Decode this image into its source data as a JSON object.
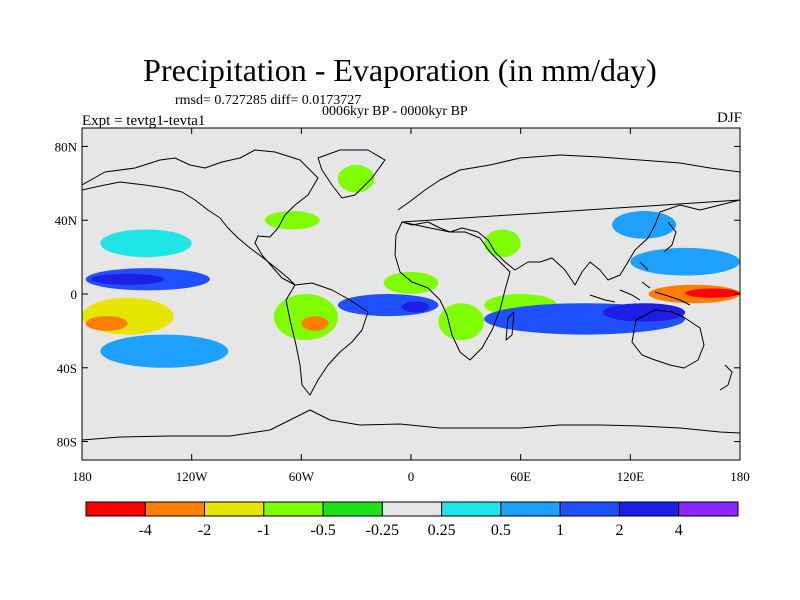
{
  "figure": {
    "title": "Precipitation - Evaporation (in mm/day)",
    "stats": "rmsd= 0.727285  diff= 0.0173727",
    "period": "0006kyr BP - 0000kyr BP",
    "experiment": "Expt = tevtg1-tevta1",
    "season": "DJF"
  },
  "axes": {
    "lat_ticks": [
      "80N",
      "40N",
      "0",
      "40S",
      "80S"
    ],
    "lat_values": [
      80,
      40,
      0,
      -40,
      -80
    ],
    "lon_ticks": [
      "180",
      "120W",
      "60W",
      "0",
      "60E",
      "120E",
      "180"
    ],
    "lon_values": [
      -180,
      -120,
      -60,
      0,
      60,
      120,
      180
    ]
  },
  "colorbar": {
    "colors": [
      "#ff0000",
      "#ff8000",
      "#e6e600",
      "#80ff00",
      "#1ee11e",
      "#e6e6e6",
      "#1ee6e6",
      "#1ea0ff",
      "#1e50ff",
      "#1e1ee6",
      "#8c28ff"
    ],
    "labels": [
      "-4",
      "-2",
      "-1",
      "-0.5",
      "-0.25",
      "0.25",
      "0.5",
      "1",
      "2",
      "4"
    ]
  },
  "chart_data": {
    "type": "heatmap",
    "variable": "Precipitation - Evaporation",
    "units": "mm/day",
    "x_range": [
      -180,
      180
    ],
    "y_range": [
      -90,
      90
    ],
    "contour_levels": [
      -4,
      -2,
      -1,
      -0.5,
      -0.25,
      0.25,
      0.5,
      1,
      2,
      4
    ],
    "anomaly_regions": [
      {
        "lon": [
          -180,
          -130
        ],
        "lat": [
          -22,
          -2
        ],
        "value": -1.5
      },
      {
        "lon": [
          -178,
          -155
        ],
        "lat": [
          -20,
          -12
        ],
        "value": -3
      },
      {
        "lon": [
          -178,
          -110
        ],
        "lat": [
          2,
          14
        ],
        "value": 1.5
      },
      {
        "lon": [
          -175,
          -135
        ],
        "lat": [
          5,
          11
        ],
        "value": 3
      },
      {
        "lon": [
          -170,
          -100
        ],
        "lat": [
          -40,
          -22
        ],
        "value": 1
      },
      {
        "lon": [
          -170,
          -120
        ],
        "lat": [
          20,
          35
        ],
        "value": 0.5
      },
      {
        "lon": [
          -75,
          -40
        ],
        "lat": [
          -25,
          0
        ],
        "value": -0.5
      },
      {
        "lon": [
          -60,
          -45
        ],
        "lat": [
          -20,
          -12
        ],
        "value": -2
      },
      {
        "lon": [
          -40,
          15
        ],
        "lat": [
          -12,
          0
        ],
        "value": 2
      },
      {
        "lon": [
          -5,
          10
        ],
        "lat": [
          -10,
          -4
        ],
        "value": 4
      },
      {
        "lon": [
          -15,
          15
        ],
        "lat": [
          0,
          12
        ],
        "value": -0.5
      },
      {
        "lon": [
          15,
          40
        ],
        "lat": [
          -25,
          -5
        ],
        "value": -0.75
      },
      {
        "lon": [
          40,
          80
        ],
        "lat": [
          -12,
          0
        ],
        "value": -0.75
      },
      {
        "lon": [
          40,
          150
        ],
        "lat": [
          -22,
          -5
        ],
        "value": 1.5
      },
      {
        "lon": [
          105,
          150
        ],
        "lat": [
          -15,
          -5
        ],
        "value": 3
      },
      {
        "lon": [
          130,
          180
        ],
        "lat": [
          -5,
          5
        ],
        "value": -2.5
      },
      {
        "lon": [
          150,
          180
        ],
        "lat": [
          -2,
          3
        ],
        "value": -4
      },
      {
        "lon": [
          120,
          180
        ],
        "lat": [
          10,
          25
        ],
        "value": 1
      },
      {
        "lon": [
          110,
          145
        ],
        "lat": [
          30,
          45
        ],
        "value": 1
      },
      {
        "lon": [
          -40,
          -20
        ],
        "lat": [
          55,
          70
        ],
        "value": -0.5
      },
      {
        "lon": [
          -80,
          -50
        ],
        "lat": [
          35,
          45
        ],
        "value": -0.5
      },
      {
        "lon": [
          40,
          60
        ],
        "lat": [
          20,
          35
        ],
        "value": -0.5
      }
    ]
  }
}
